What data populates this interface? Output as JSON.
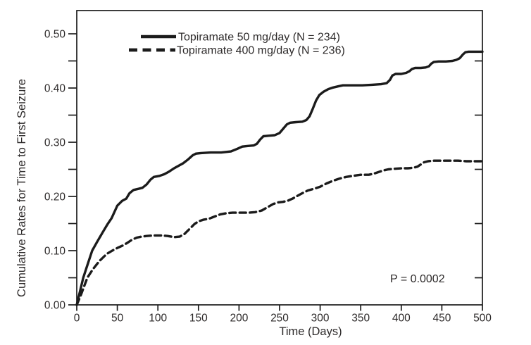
{
  "figure": {
    "background": "#ffffff",
    "ink_color": "#1b1b1b",
    "text_color": "#2d2a2a"
  },
  "chart_data": {
    "type": "line",
    "title": "",
    "xlabel": "Time (Days)",
    "ylabel": "Cumulative Rates for Time to First Seizure",
    "xlim": [
      0,
      500
    ],
    "ylim": [
      0,
      0.5429
    ],
    "xticks": [
      0,
      50,
      100,
      150,
      200,
      250,
      300,
      350,
      400,
      450,
      500
    ],
    "yticks_major": [
      0.0,
      0.1,
      0.2,
      0.3,
      0.4,
      0.5
    ],
    "yticks_minor": [
      0.05,
      0.15,
      0.25,
      0.35,
      0.45
    ],
    "right_ticks": [
      0.05,
      0.15,
      0.25,
      0.35,
      0.45
    ],
    "grid": false,
    "legend_position": "top-inside",
    "annotation": {
      "text": "P = 0.0002",
      "x_days": 420,
      "y_rate": 0.049
    },
    "series": [
      {
        "name": "Topiramate 50 mg/day (N = 234)",
        "line_style": "solid",
        "color": "#1b1b1b",
        "points": [
          [
            0,
            0
          ],
          [
            4,
            0.025
          ],
          [
            8,
            0.05
          ],
          [
            13,
            0.073
          ],
          [
            19,
            0.1
          ],
          [
            25,
            0.116
          ],
          [
            32,
            0.134
          ],
          [
            38,
            0.149
          ],
          [
            43,
            0.16
          ],
          [
            50,
            0.183
          ],
          [
            56,
            0.192
          ],
          [
            61,
            0.196
          ],
          [
            65,
            0.206
          ],
          [
            70,
            0.212
          ],
          [
            76,
            0.214
          ],
          [
            81,
            0.216
          ],
          [
            86,
            0.222
          ],
          [
            91,
            0.231
          ],
          [
            95,
            0.236
          ],
          [
            102,
            0.238
          ],
          [
            108,
            0.241
          ],
          [
            114,
            0.246
          ],
          [
            120,
            0.252
          ],
          [
            126,
            0.257
          ],
          [
            131,
            0.261
          ],
          [
            137,
            0.268
          ],
          [
            143,
            0.276
          ],
          [
            147,
            0.279
          ],
          [
            153,
            0.28
          ],
          [
            165,
            0.281
          ],
          [
            178,
            0.281
          ],
          [
            190,
            0.283
          ],
          [
            198,
            0.288
          ],
          [
            204,
            0.292
          ],
          [
            210,
            0.293
          ],
          [
            218,
            0.294
          ],
          [
            222,
            0.297
          ],
          [
            226,
            0.305
          ],
          [
            230,
            0.311
          ],
          [
            236,
            0.312
          ],
          [
            244,
            0.313
          ],
          [
            250,
            0.317
          ],
          [
            255,
            0.326
          ],
          [
            259,
            0.333
          ],
          [
            263,
            0.336
          ],
          [
            270,
            0.337
          ],
          [
            278,
            0.338
          ],
          [
            283,
            0.341
          ],
          [
            287,
            0.348
          ],
          [
            291,
            0.362
          ],
          [
            295,
            0.377
          ],
          [
            299,
            0.387
          ],
          [
            304,
            0.393
          ],
          [
            310,
            0.398
          ],
          [
            316,
            0.401
          ],
          [
            322,
            0.403
          ],
          [
            328,
            0.405
          ],
          [
            340,
            0.405
          ],
          [
            352,
            0.405
          ],
          [
            364,
            0.406
          ],
          [
            375,
            0.407
          ],
          [
            382,
            0.409
          ],
          [
            386,
            0.415
          ],
          [
            389,
            0.423
          ],
          [
            393,
            0.426
          ],
          [
            400,
            0.426
          ],
          [
            406,
            0.428
          ],
          [
            410,
            0.431
          ],
          [
            413,
            0.435
          ],
          [
            417,
            0.437
          ],
          [
            424,
            0.437
          ],
          [
            430,
            0.438
          ],
          [
            434,
            0.44
          ],
          [
            437,
            0.445
          ],
          [
            440,
            0.448
          ],
          [
            446,
            0.449
          ],
          [
            455,
            0.449
          ],
          [
            463,
            0.45
          ],
          [
            468,
            0.452
          ],
          [
            472,
            0.455
          ],
          [
            476,
            0.462
          ],
          [
            479,
            0.466
          ],
          [
            483,
            0.467
          ],
          [
            490,
            0.467
          ],
          [
            500,
            0.467
          ]
        ]
      },
      {
        "name": "Topiramate 400 mg/day (N = 236)",
        "line_style": "dashed",
        "color": "#1b1b1b",
        "points": [
          [
            0,
            0
          ],
          [
            5,
            0.018
          ],
          [
            9,
            0.034
          ],
          [
            13,
            0.05
          ],
          [
            20,
            0.066
          ],
          [
            28,
            0.081
          ],
          [
            37,
            0.094
          ],
          [
            45,
            0.101
          ],
          [
            50,
            0.105
          ],
          [
            56,
            0.109
          ],
          [
            62,
            0.114
          ],
          [
            68,
            0.12
          ],
          [
            74,
            0.124
          ],
          [
            80,
            0.126
          ],
          [
            86,
            0.127
          ],
          [
            95,
            0.128
          ],
          [
            104,
            0.128
          ],
          [
            112,
            0.127
          ],
          [
            120,
            0.125
          ],
          [
            127,
            0.126
          ],
          [
            133,
            0.131
          ],
          [
            139,
            0.14
          ],
          [
            145,
            0.149
          ],
          [
            150,
            0.154
          ],
          [
            156,
            0.157
          ],
          [
            163,
            0.159
          ],
          [
            170,
            0.163
          ],
          [
            177,
            0.167
          ],
          [
            184,
            0.169
          ],
          [
            192,
            0.17
          ],
          [
            202,
            0.17
          ],
          [
            212,
            0.17
          ],
          [
            220,
            0.171
          ],
          [
            228,
            0.174
          ],
          [
            235,
            0.18
          ],
          [
            242,
            0.186
          ],
          [
            248,
            0.189
          ],
          [
            254,
            0.19
          ],
          [
            260,
            0.192
          ],
          [
            266,
            0.196
          ],
          [
            272,
            0.201
          ],
          [
            278,
            0.206
          ],
          [
            285,
            0.211
          ],
          [
            292,
            0.214
          ],
          [
            300,
            0.218
          ],
          [
            308,
            0.224
          ],
          [
            316,
            0.229
          ],
          [
            324,
            0.233
          ],
          [
            332,
            0.236
          ],
          [
            340,
            0.238
          ],
          [
            350,
            0.24
          ],
          [
            360,
            0.24
          ],
          [
            366,
            0.242
          ],
          [
            372,
            0.245
          ],
          [
            378,
            0.248
          ],
          [
            384,
            0.25
          ],
          [
            392,
            0.251
          ],
          [
            400,
            0.252
          ],
          [
            408,
            0.252
          ],
          [
            415,
            0.253
          ],
          [
            420,
            0.255
          ],
          [
            424,
            0.259
          ],
          [
            428,
            0.263
          ],
          [
            433,
            0.265
          ],
          [
            440,
            0.266
          ],
          [
            455,
            0.266
          ],
          [
            470,
            0.266
          ],
          [
            480,
            0.265
          ],
          [
            490,
            0.265
          ],
          [
            500,
            0.265
          ]
        ]
      }
    ]
  }
}
